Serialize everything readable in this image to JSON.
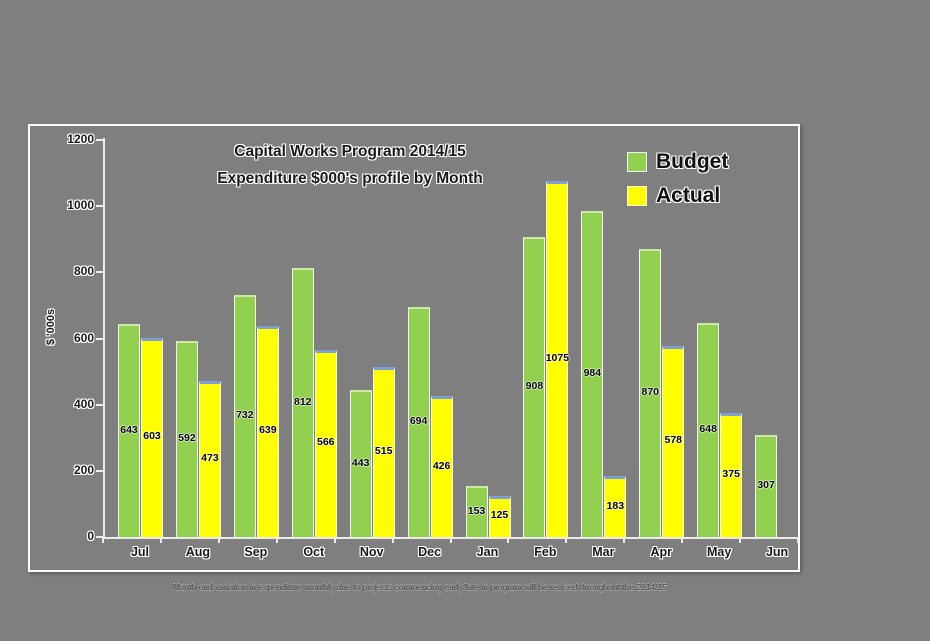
{
  "colors": {
    "background": "#7f7f7f",
    "frame_border": "#fbfbfb",
    "axis": "#ececec",
    "budget_fill": "#92d050",
    "budget_top_edge": "#cde7a9",
    "actual_fill": "#ffff00",
    "actual_top_edge": "#7e9ed6",
    "text": "#1a1a1a"
  },
  "chart_data": {
    "type": "bar",
    "title_line1": "Capital Works Program 2014/15",
    "title_line2": "Expenditure $000's profile by Month",
    "ylabel": "$ '000s",
    "ylim": [
      0,
      1200
    ],
    "yticks": [
      0,
      200,
      400,
      600,
      800,
      1000,
      1200
    ],
    "grid": false,
    "legend_position": "top-right",
    "categories": [
      "Jul",
      "Aug",
      "Sep",
      "Oct",
      "Nov",
      "Dec",
      "Jan",
      "Feb",
      "Mar",
      "Apr",
      "May",
      "Jun"
    ],
    "series": [
      {
        "name": "Budget",
        "color": "#92d050",
        "values": [
          643,
          592,
          732,
          812,
          443,
          694,
          153,
          908,
          984,
          870,
          648,
          307
        ]
      },
      {
        "name": "Actual",
        "color": "#ffff00",
        "values": [
          603,
          473,
          639,
          566,
          515,
          426,
          125,
          1075,
          183,
          578,
          375,
          null
        ]
      }
    ],
    "value_labels": "centered inside bars"
  },
  "caption": "Month end variation in expenditure monthly due to projects commencing early/late in program will be revised throughout the 2014/15"
}
